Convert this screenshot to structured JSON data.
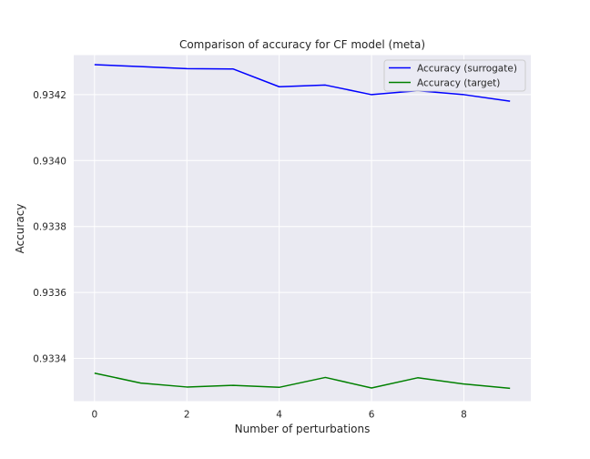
{
  "chart_data": {
    "type": "line",
    "title": "Comparison of accuracy for CF model (meta)",
    "xlabel": "Number of perturbations",
    "ylabel": "Accuracy",
    "xlim": [
      -0.45,
      9.45
    ],
    "ylim": [
      0.93327,
      0.93432
    ],
    "xticks": [
      0,
      2,
      4,
      6,
      8
    ],
    "yticks": [
      0.9334,
      0.9336,
      0.9338,
      0.934,
      0.9342
    ],
    "ytick_labels": [
      "0.9334",
      "0.9336",
      "0.9338",
      "0.9340",
      "0.9342"
    ],
    "grid": true,
    "legend_position": "top-right",
    "x": [
      0,
      1,
      2,
      3,
      4,
      5,
      6,
      7,
      8,
      9
    ],
    "series": [
      {
        "name": "Accuracy (surrogate)",
        "color": "#0000ff",
        "values": [
          0.934291,
          0.934285,
          0.934279,
          0.934278,
          0.934224,
          0.934229,
          0.9342,
          0.934212,
          0.9342,
          0.93418
        ]
      },
      {
        "name": "Accuracy (target)",
        "color": "#008000",
        "values": [
          0.933355,
          0.933325,
          0.933313,
          0.933318,
          0.933312,
          0.933342,
          0.93331,
          0.933341,
          0.933322,
          0.933309
        ]
      }
    ]
  },
  "colors": {
    "plot_background": "#eaeaf2",
    "grid": "#ffffff"
  }
}
